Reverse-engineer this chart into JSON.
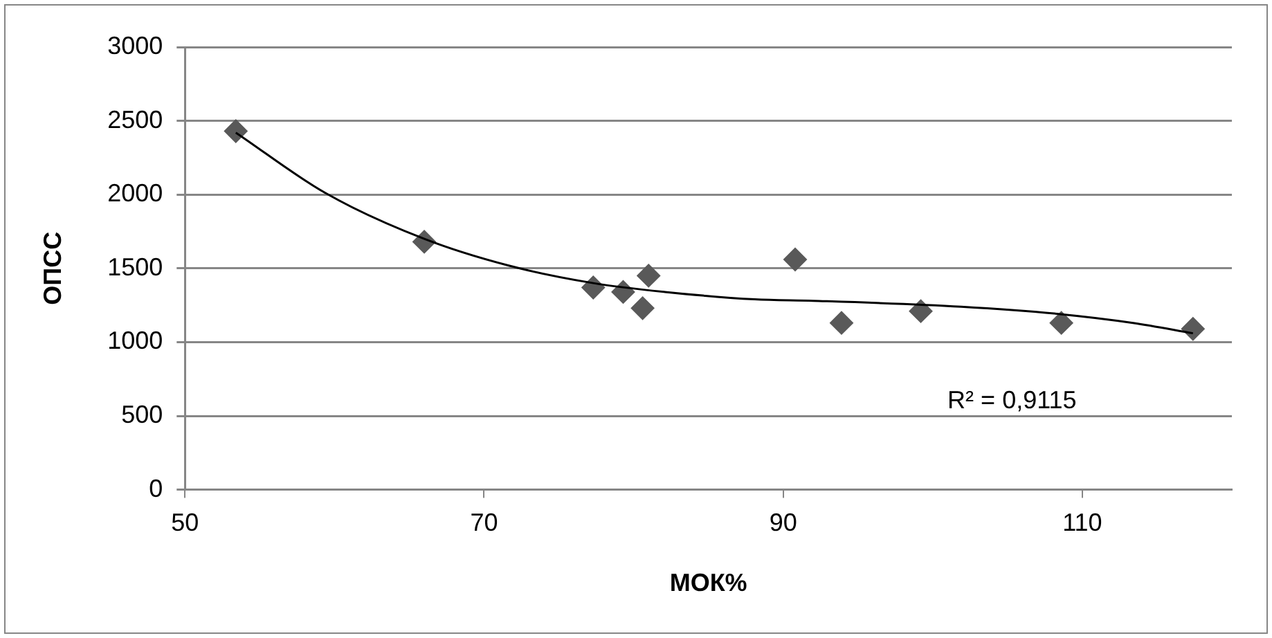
{
  "chart_data": {
    "type": "scatter",
    "xlabel": "МОК%",
    "ylabel": "ОПСС",
    "x": [
      53.4,
      66.0,
      77.3,
      79.3,
      81.0,
      80.6,
      90.8,
      93.9,
      99.2,
      108.6,
      117.4
    ],
    "series": [
      {
        "color": "#595959",
        "values": [
          2430,
          1680,
          1370,
          1340,
          1450,
          1230,
          1560,
          1130,
          1210,
          1130,
          1090
        ]
      },
      {
        "type": "line",
        "marker": "none",
        "color": "#000000",
        "x": [
          53.4,
          59.4,
          66,
          71.6,
          77.3,
          82.1,
          88.1,
          92,
          101.9,
          108.5,
          113.4,
          117.4
        ],
        "values": [
          2420,
          2010,
          1700,
          1520,
          1400,
          1340,
          1290,
          1280,
          1240,
          1190,
          1130,
          1060
        ]
      }
    ],
    "xlim": [
      50,
      120
    ],
    "xticks": [
      50,
      70,
      90,
      110
    ],
    "ylim": [
      0,
      3000
    ],
    "yticks": [
      0,
      500,
      1000,
      1500,
      2000,
      2500,
      3000
    ],
    "grid": "y",
    "marker": "diamond",
    "legend": false,
    "annotations": [
      "R² = 0,9115"
    ]
  }
}
